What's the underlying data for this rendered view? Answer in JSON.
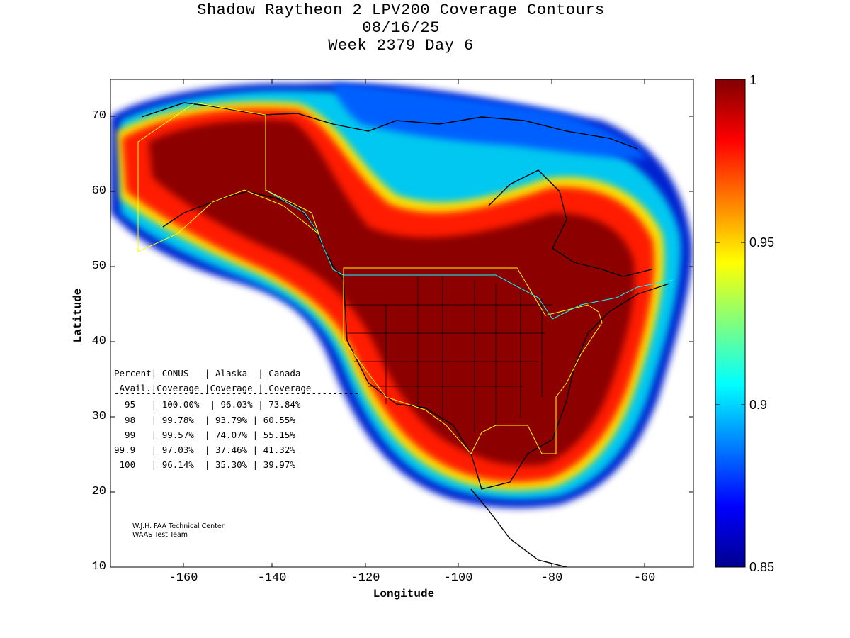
{
  "title": {
    "line1": "Shadow Raytheon 2 LPV200 Coverage Contours",
    "line2": "08/16/25",
    "line3": "Week 2379 Day 6"
  },
  "axes": {
    "xlabel": "Longitude",
    "ylabel": "Latitude",
    "xticks": [
      "-160",
      "-140",
      "-120",
      "-100",
      "-80",
      "-60"
    ],
    "yticks": [
      "70",
      "60",
      "50",
      "40",
      "30",
      "20",
      "10"
    ],
    "xlim": [
      -175,
      -50
    ],
    "ylim": [
      10,
      75
    ]
  },
  "colorbar": {
    "ticks": [
      "1",
      "0.95",
      "0.9",
      "0.85"
    ],
    "range": [
      0.85,
      1.0
    ],
    "colormap": "jet",
    "colors": [
      "#00008f",
      "#0000ff",
      "#00ffff",
      "#ffff00",
      "#ff0000",
      "#800000"
    ]
  },
  "coverage_table": {
    "header1": "Percent| CONUS   | Alaska  | Canada",
    "header2": " Avail.|Coverage |Coverage | Coverage",
    "separator": "----------------------------------------------",
    "rows": [
      "  95   | 100.00%  | 96.03% | 73.84%",
      "  98   | 99.78%  | 93.79% | 60.55%",
      "  99   | 99.57%  | 74.07% | 55.15%",
      "99.9   | 97.03%  | 37.46% | 41.32%",
      " 100   | 96.14%  | 35.30% | 39.97%"
    ]
  },
  "credit": {
    "line1": "W.J.H. FAA Technical Center",
    "line2": "WAAS Test Team"
  }
}
